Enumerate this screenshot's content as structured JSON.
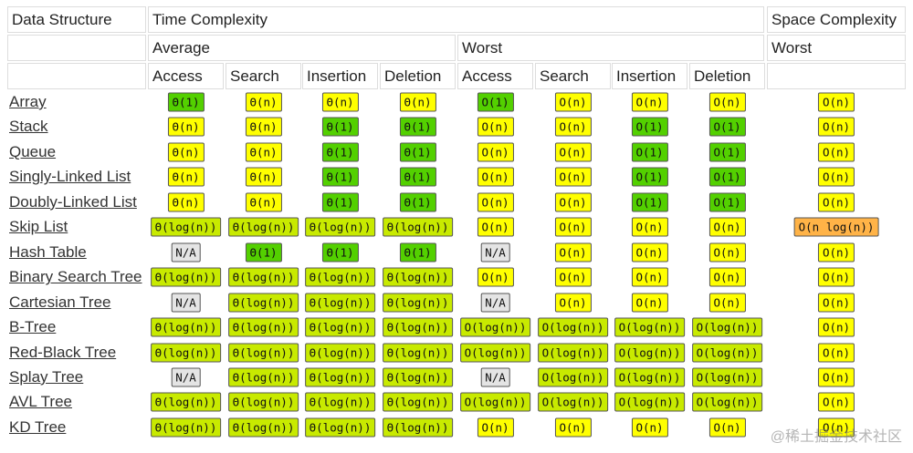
{
  "header": {
    "row1": [
      "Data Structure",
      "Time Complexity",
      "Space Complexity"
    ],
    "row2": [
      "Average",
      "Worst",
      "Worst"
    ],
    "row3": [
      "Access",
      "Search",
      "Insertion",
      "Deletion",
      "Access",
      "Search",
      "Insertion",
      "Deletion"
    ]
  },
  "table": {
    "rows": [
      {
        "name": "Array",
        "cells": [
          {
            "text": "Θ(1)",
            "color": "#53d000"
          },
          {
            "text": "Θ(n)",
            "color": "#ffff00"
          },
          {
            "text": "Θ(n)",
            "color": "#ffff00"
          },
          {
            "text": "Θ(n)",
            "color": "#ffff00"
          },
          {
            "text": "O(1)",
            "color": "#53d000"
          },
          {
            "text": "O(n)",
            "color": "#ffff00"
          },
          {
            "text": "O(n)",
            "color": "#ffff00"
          },
          {
            "text": "O(n)",
            "color": "#ffff00"
          },
          {
            "text": "O(n)",
            "color": "#ffff00"
          }
        ]
      },
      {
        "name": "Stack",
        "cells": [
          {
            "text": "Θ(n)",
            "color": "#ffff00"
          },
          {
            "text": "Θ(n)",
            "color": "#ffff00"
          },
          {
            "text": "Θ(1)",
            "color": "#53d000"
          },
          {
            "text": "Θ(1)",
            "color": "#53d000"
          },
          {
            "text": "O(n)",
            "color": "#ffff00"
          },
          {
            "text": "O(n)",
            "color": "#ffff00"
          },
          {
            "text": "O(1)",
            "color": "#53d000"
          },
          {
            "text": "O(1)",
            "color": "#53d000"
          },
          {
            "text": "O(n)",
            "color": "#ffff00"
          }
        ]
      },
      {
        "name": "Queue",
        "cells": [
          {
            "text": "Θ(n)",
            "color": "#ffff00"
          },
          {
            "text": "Θ(n)",
            "color": "#ffff00"
          },
          {
            "text": "Θ(1)",
            "color": "#53d000"
          },
          {
            "text": "Θ(1)",
            "color": "#53d000"
          },
          {
            "text": "O(n)",
            "color": "#ffff00"
          },
          {
            "text": "O(n)",
            "color": "#ffff00"
          },
          {
            "text": "O(1)",
            "color": "#53d000"
          },
          {
            "text": "O(1)",
            "color": "#53d000"
          },
          {
            "text": "O(n)",
            "color": "#ffff00"
          }
        ]
      },
      {
        "name": "Singly-Linked List",
        "cells": [
          {
            "text": "Θ(n)",
            "color": "#ffff00"
          },
          {
            "text": "Θ(n)",
            "color": "#ffff00"
          },
          {
            "text": "Θ(1)",
            "color": "#53d000"
          },
          {
            "text": "Θ(1)",
            "color": "#53d000"
          },
          {
            "text": "O(n)",
            "color": "#ffff00"
          },
          {
            "text": "O(n)",
            "color": "#ffff00"
          },
          {
            "text": "O(1)",
            "color": "#53d000"
          },
          {
            "text": "O(1)",
            "color": "#53d000"
          },
          {
            "text": "O(n)",
            "color": "#ffff00"
          }
        ]
      },
      {
        "name": "Doubly-Linked List",
        "cells": [
          {
            "text": "Θ(n)",
            "color": "#ffff00"
          },
          {
            "text": "Θ(n)",
            "color": "#ffff00"
          },
          {
            "text": "Θ(1)",
            "color": "#53d000"
          },
          {
            "text": "Θ(1)",
            "color": "#53d000"
          },
          {
            "text": "O(n)",
            "color": "#ffff00"
          },
          {
            "text": "O(n)",
            "color": "#ffff00"
          },
          {
            "text": "O(1)",
            "color": "#53d000"
          },
          {
            "text": "O(1)",
            "color": "#53d000"
          },
          {
            "text": "O(n)",
            "color": "#ffff00"
          }
        ]
      },
      {
        "name": "Skip List",
        "cells": [
          {
            "text": "Θ(log(n))",
            "color": "#c8ea00"
          },
          {
            "text": "Θ(log(n))",
            "color": "#c8ea00"
          },
          {
            "text": "Θ(log(n))",
            "color": "#c8ea00"
          },
          {
            "text": "Θ(log(n))",
            "color": "#c8ea00"
          },
          {
            "text": "O(n)",
            "color": "#ffff00"
          },
          {
            "text": "O(n)",
            "color": "#ffff00"
          },
          {
            "text": "O(n)",
            "color": "#ffff00"
          },
          {
            "text": "O(n)",
            "color": "#ffff00"
          },
          {
            "text": "O(n log(n))",
            "color": "#ffb347"
          }
        ]
      },
      {
        "name": "Hash Table",
        "cells": [
          {
            "text": "N/A",
            "color": "#e4e4e4"
          },
          {
            "text": "Θ(1)",
            "color": "#53d000"
          },
          {
            "text": "Θ(1)",
            "color": "#53d000"
          },
          {
            "text": "Θ(1)",
            "color": "#53d000"
          },
          {
            "text": "N/A",
            "color": "#e4e4e4"
          },
          {
            "text": "O(n)",
            "color": "#ffff00"
          },
          {
            "text": "O(n)",
            "color": "#ffff00"
          },
          {
            "text": "O(n)",
            "color": "#ffff00"
          },
          {
            "text": "O(n)",
            "color": "#ffff00"
          }
        ]
      },
      {
        "name": "Binary Search Tree",
        "cells": [
          {
            "text": "Θ(log(n))",
            "color": "#c8ea00"
          },
          {
            "text": "Θ(log(n))",
            "color": "#c8ea00"
          },
          {
            "text": "Θ(log(n))",
            "color": "#c8ea00"
          },
          {
            "text": "Θ(log(n))",
            "color": "#c8ea00"
          },
          {
            "text": "O(n)",
            "color": "#ffff00"
          },
          {
            "text": "O(n)",
            "color": "#ffff00"
          },
          {
            "text": "O(n)",
            "color": "#ffff00"
          },
          {
            "text": "O(n)",
            "color": "#ffff00"
          },
          {
            "text": "O(n)",
            "color": "#ffff00"
          }
        ]
      },
      {
        "name": "Cartesian Tree",
        "cells": [
          {
            "text": "N/A",
            "color": "#e4e4e4"
          },
          {
            "text": "Θ(log(n))",
            "color": "#c8ea00"
          },
          {
            "text": "Θ(log(n))",
            "color": "#c8ea00"
          },
          {
            "text": "Θ(log(n))",
            "color": "#c8ea00"
          },
          {
            "text": "N/A",
            "color": "#e4e4e4"
          },
          {
            "text": "O(n)",
            "color": "#ffff00"
          },
          {
            "text": "O(n)",
            "color": "#ffff00"
          },
          {
            "text": "O(n)",
            "color": "#ffff00"
          },
          {
            "text": "O(n)",
            "color": "#ffff00"
          }
        ]
      },
      {
        "name": "B-Tree",
        "cells": [
          {
            "text": "Θ(log(n))",
            "color": "#c8ea00"
          },
          {
            "text": "Θ(log(n))",
            "color": "#c8ea00"
          },
          {
            "text": "Θ(log(n))",
            "color": "#c8ea00"
          },
          {
            "text": "Θ(log(n))",
            "color": "#c8ea00"
          },
          {
            "text": "O(log(n))",
            "color": "#c8ea00"
          },
          {
            "text": "O(log(n))",
            "color": "#c8ea00"
          },
          {
            "text": "O(log(n))",
            "color": "#c8ea00"
          },
          {
            "text": "O(log(n))",
            "color": "#c8ea00"
          },
          {
            "text": "O(n)",
            "color": "#ffff00"
          }
        ]
      },
      {
        "name": "Red-Black Tree",
        "cells": [
          {
            "text": "Θ(log(n))",
            "color": "#c8ea00"
          },
          {
            "text": "Θ(log(n))",
            "color": "#c8ea00"
          },
          {
            "text": "Θ(log(n))",
            "color": "#c8ea00"
          },
          {
            "text": "Θ(log(n))",
            "color": "#c8ea00"
          },
          {
            "text": "O(log(n))",
            "color": "#c8ea00"
          },
          {
            "text": "O(log(n))",
            "color": "#c8ea00"
          },
          {
            "text": "O(log(n))",
            "color": "#c8ea00"
          },
          {
            "text": "O(log(n))",
            "color": "#c8ea00"
          },
          {
            "text": "O(n)",
            "color": "#ffff00"
          }
        ]
      },
      {
        "name": "Splay Tree",
        "cells": [
          {
            "text": "N/A",
            "color": "#e4e4e4"
          },
          {
            "text": "Θ(log(n))",
            "color": "#c8ea00"
          },
          {
            "text": "Θ(log(n))",
            "color": "#c8ea00"
          },
          {
            "text": "Θ(log(n))",
            "color": "#c8ea00"
          },
          {
            "text": "N/A",
            "color": "#e4e4e4"
          },
          {
            "text": "O(log(n))",
            "color": "#c8ea00"
          },
          {
            "text": "O(log(n))",
            "color": "#c8ea00"
          },
          {
            "text": "O(log(n))",
            "color": "#c8ea00"
          },
          {
            "text": "O(n)",
            "color": "#ffff00"
          }
        ]
      },
      {
        "name": "AVL Tree",
        "cells": [
          {
            "text": "Θ(log(n))",
            "color": "#c8ea00"
          },
          {
            "text": "Θ(log(n))",
            "color": "#c8ea00"
          },
          {
            "text": "Θ(log(n))",
            "color": "#c8ea00"
          },
          {
            "text": "Θ(log(n))",
            "color": "#c8ea00"
          },
          {
            "text": "O(log(n))",
            "color": "#c8ea00"
          },
          {
            "text": "O(log(n))",
            "color": "#c8ea00"
          },
          {
            "text": "O(log(n))",
            "color": "#c8ea00"
          },
          {
            "text": "O(log(n))",
            "color": "#c8ea00"
          },
          {
            "text": "O(n)",
            "color": "#ffff00"
          }
        ]
      },
      {
        "name": "KD Tree",
        "cells": [
          {
            "text": "Θ(log(n))",
            "color": "#c8ea00"
          },
          {
            "text": "Θ(log(n))",
            "color": "#c8ea00"
          },
          {
            "text": "Θ(log(n))",
            "color": "#c8ea00"
          },
          {
            "text": "Θ(log(n))",
            "color": "#c8ea00"
          },
          {
            "text": "O(n)",
            "color": "#ffff00"
          },
          {
            "text": "O(n)",
            "color": "#ffff00"
          },
          {
            "text": "O(n)",
            "color": "#ffff00"
          },
          {
            "text": "O(n)",
            "color": "#ffff00"
          },
          {
            "text": "O(n)",
            "color": "#ffff00"
          }
        ]
      }
    ]
  },
  "watermark": "@稀土掘金技术社区"
}
